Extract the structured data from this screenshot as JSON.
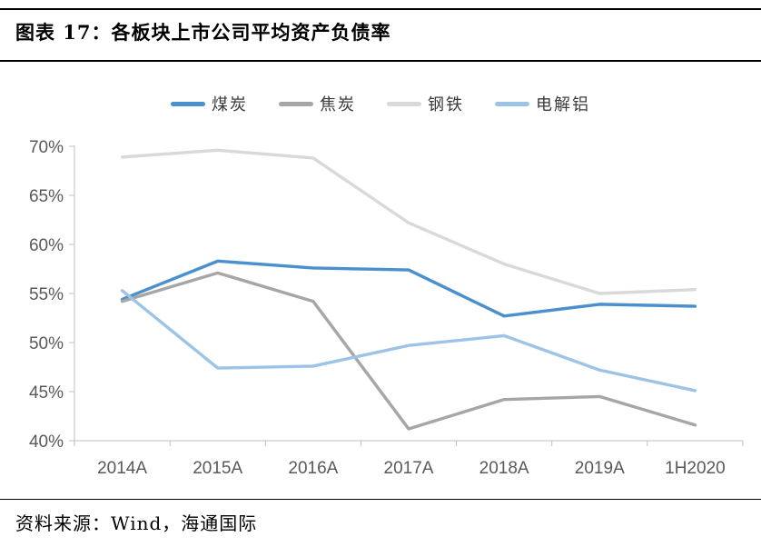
{
  "header": {
    "title": "图表 17：各板块上市公司平均资产负债率"
  },
  "footer": {
    "source": "资料来源：Wind，海通国际"
  },
  "chart_data": {
    "type": "line",
    "title": "各板块上市公司平均资产负债率",
    "categories": [
      "2014A",
      "2015A",
      "2016A",
      "2017A",
      "2018A",
      "2019A",
      "1H2020"
    ],
    "series": [
      {
        "key": "coal",
        "name": "煤炭",
        "color": "#4A90CE",
        "values": [
          54.4,
          58.3,
          57.6,
          57.4,
          52.7,
          53.9,
          53.7
        ]
      },
      {
        "key": "coke",
        "name": "焦炭",
        "color": "#A6A6A6",
        "values": [
          54.2,
          57.1,
          54.2,
          41.2,
          44.2,
          44.5,
          41.6
        ]
      },
      {
        "key": "steel",
        "name": "钢铁",
        "color": "#D9D9D9",
        "values": [
          68.9,
          69.6,
          68.8,
          62.2,
          58.0,
          55.0,
          55.4
        ]
      },
      {
        "key": "aluminum",
        "name": "电解铝",
        "color": "#9DC3E6",
        "values": [
          55.3,
          47.4,
          47.6,
          49.7,
          50.7,
          47.2,
          45.1
        ]
      }
    ],
    "xlabel": "",
    "ylabel": "",
    "ylim": [
      40,
      70
    ],
    "ytick_step": 5,
    "y_tick_labels": [
      "40%",
      "45%",
      "50%",
      "55%",
      "60%",
      "65%",
      "70%"
    ],
    "grid": false,
    "legend_position": "top",
    "axis_color": "#BFBFBF",
    "tick_label_color": "#595959"
  }
}
